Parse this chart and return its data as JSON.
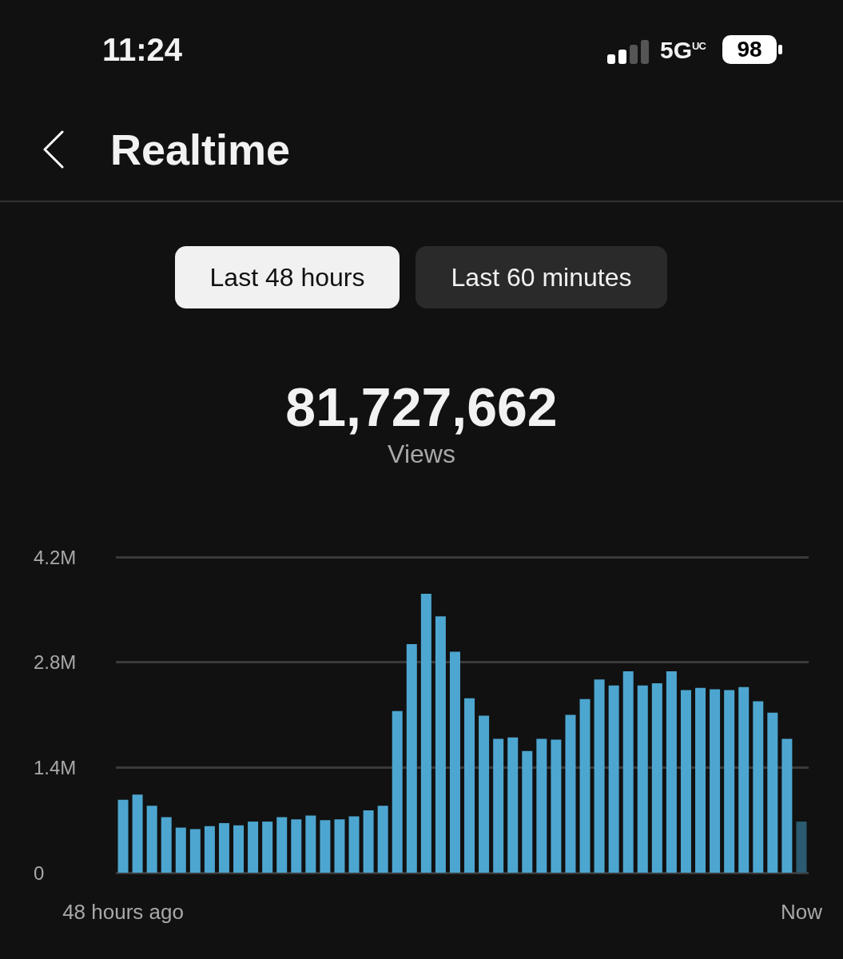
{
  "chart_data": {
    "type": "bar",
    "title": "Realtime",
    "annotations": [
      "11:24",
      "5G$^{UC}$",
      "98",
      "Last 48 hours",
      "Last 60 minutes",
      "81,727,662",
      "Views"
    ],
    "categories": [
      "48 hours ago",
      null,
      null,
      null,
      null,
      null,
      null,
      null,
      null,
      null,
      null,
      null,
      null,
      null,
      null,
      null,
      null,
      null,
      null,
      null,
      null,
      null,
      null,
      null,
      null,
      null,
      null,
      null,
      null,
      null,
      null,
      null,
      null,
      null,
      null,
      null,
      null,
      null,
      null,
      null,
      null,
      null,
      null,
      null,
      null,
      null,
      null,
      "Now"
    ],
    "values": [
      0.97,
      1.04,
      0.89,
      0.74,
      0.6,
      0.58,
      0.62,
      0.66,
      0.63,
      0.68,
      0.68,
      0.74,
      0.71,
      0.76,
      0.7,
      0.71,
      0.75,
      0.83,
      0.89,
      2.15,
      3.04,
      3.71,
      3.41,
      2.94,
      2.32,
      2.09,
      1.78,
      1.8,
      1.62,
      1.78,
      1.77,
      2.1,
      2.31,
      2.57,
      2.49,
      2.68,
      2.49,
      2.52,
      2.68,
      2.43,
      2.46,
      2.44,
      2.43,
      2.47,
      2.28,
      2.13,
      1.78,
      0.68
    ],
    "colors": [
      "#4da6d0",
      "#4da6d0",
      "#4da6d0",
      "#4da6d0",
      "#4da6d0",
      "#4da6d0",
      "#4da6d0",
      "#4da6d0",
      "#4da6d0",
      "#4da6d0",
      "#4da6d0",
      "#4da6d0",
      "#4da6d0",
      "#4da6d0",
      "#4da6d0",
      "#4da6d0",
      "#4da6d0",
      "#4da6d0",
      "#4da6d0",
      "#4da6d0",
      "#4da6d0",
      "#4da6d0",
      "#4da6d0",
      "#4da6d0",
      "#4da6d0",
      "#4da6d0",
      "#4da6d0",
      "#4da6d0",
      "#4da6d0",
      "#4da6d0",
      "#4da6d0",
      "#4da6d0",
      "#4da6d0",
      "#4da6d0",
      "#4da6d0",
      "#4da6d0",
      "#4da6d0",
      "#4da6d0",
      "#4da6d0",
      "#4da6d0",
      "#4da6d0",
      "#4da6d0",
      "#4da6d0",
      "#4da6d0",
      "#4da6d0",
      "#4da6d0",
      "#4da6d0",
      "#2b5b71"
    ],
    "ylim": [
      0,
      4.2
    ],
    "yticks": [
      0,
      {
        "value": 1.4,
        "label": "1.4M"
      },
      {
        "value": 2.8,
        "label": "2.8M"
      },
      {
        "value": 4.2,
        "label": "4.2M"
      }
    ],
    "grid": "y"
  }
}
